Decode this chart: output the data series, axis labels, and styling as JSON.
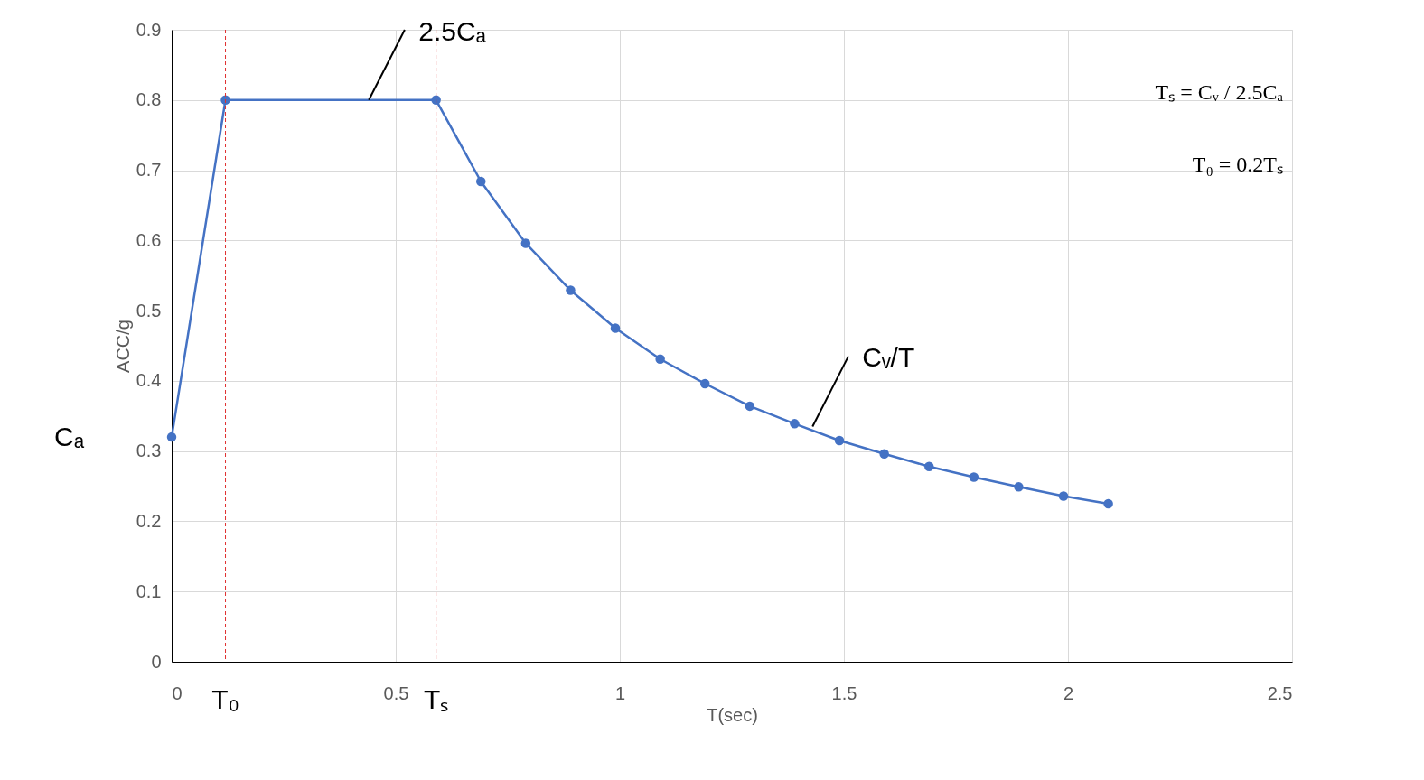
{
  "chart_data": {
    "type": "line",
    "xlabel": "T(sec)",
    "ylabel": "ACC/g",
    "x": [
      0,
      0.12,
      0.59,
      0.69,
      0.79,
      0.89,
      0.99,
      1.09,
      1.19,
      1.29,
      1.39,
      1.49,
      1.59,
      1.69,
      1.79,
      1.89,
      1.99,
      2.09
    ],
    "series": [
      {
        "color": "#4472c4",
        "values": [
          0.32,
          0.8,
          0.8,
          0.684,
          0.596,
          0.529,
          0.475,
          0.431,
          0.396,
          0.364,
          0.339,
          0.315,
          0.296,
          0.278,
          0.263,
          0.249,
          0.236,
          0.225
        ]
      }
    ],
    "xlim": [
      0,
      2.5
    ],
    "xticks": [
      0,
      0.5,
      1,
      1.5,
      2,
      2.5
    ],
    "ylim": [
      0,
      0.9
    ],
    "yticks": [
      0,
      0.1,
      0.2,
      0.3,
      0.4,
      0.5,
      0.6,
      0.7,
      0.8,
      0.9
    ],
    "grid": true,
    "marker": "circle",
    "line_style": "solid",
    "ref_lines": [
      {
        "axis": "x",
        "value": 0.12,
        "label": "T₀",
        "color": "#e03030",
        "line_style": "dashed"
      },
      {
        "axis": "x",
        "value": 0.59,
        "label": "Tₛ",
        "color": "#e03030",
        "line_style": "dashed"
      }
    ],
    "annotations": [
      "Cₐ",
      {
        "text": "2.5Cₐ",
        "x": 0.44,
        "y": 0.8
      },
      {
        "text": "Cᵥ/T",
        "x": 1.43,
        "y": 0.335
      },
      "Tₛ = Cᵥ / 2.5Cₐ",
      "T₀ = 0.2Tₛ"
    ]
  }
}
